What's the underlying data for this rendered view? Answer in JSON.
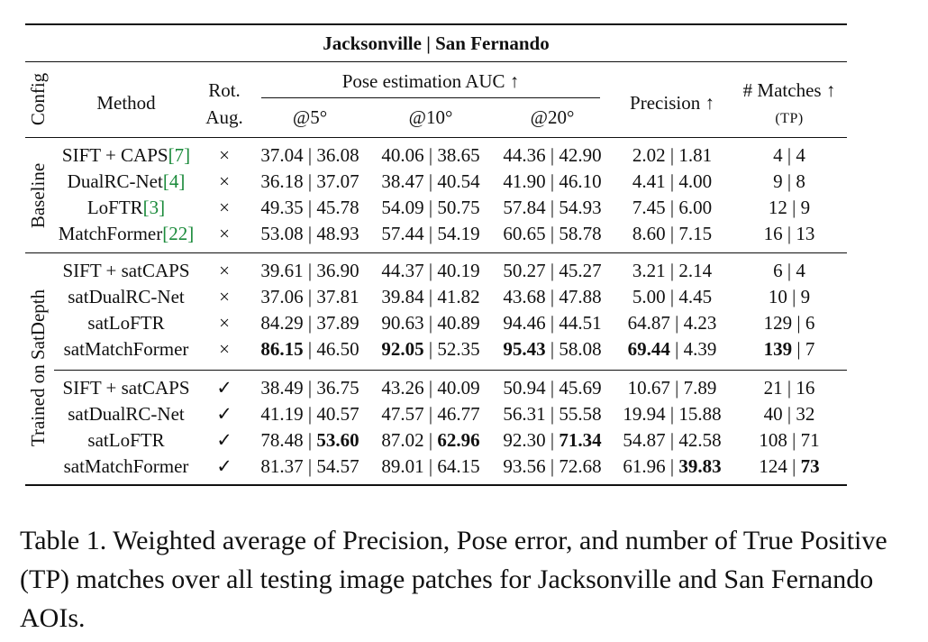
{
  "table": {
    "title": "Jacksonville | San Fernando",
    "headers": {
      "config": "Config",
      "method": "Method",
      "rot_aug_line1": "Rot.",
      "rot_aug_line2": "Aug.",
      "pose_group": "Pose estimation AUC ↑",
      "at5": "@5°",
      "at10": "@10°",
      "at20": "@20°",
      "precision": "Precision ↑",
      "matches_line1": "# Matches ↑",
      "matches_line2": "(TP)"
    },
    "groups": [
      {
        "label": "Baseline",
        "rows": [
          {
            "method": "SIFT + CAPS",
            "cite": "[7]",
            "rot": "×",
            "at5": [
              "37.04",
              "36.08"
            ],
            "at10": [
              "40.06",
              "38.65"
            ],
            "at20": [
              "44.36",
              "42.90"
            ],
            "precision": [
              "2.02",
              "1.81"
            ],
            "matches": [
              "4",
              "4"
            ]
          },
          {
            "method": "DualRC-Net",
            "cite": "[4]",
            "rot": "×",
            "at5": [
              "36.18",
              "37.07"
            ],
            "at10": [
              "38.47",
              "40.54"
            ],
            "at20": [
              "41.90",
              "46.10"
            ],
            "precision": [
              "4.41",
              "4.00"
            ],
            "matches": [
              "9",
              "8"
            ]
          },
          {
            "method": "LoFTR",
            "cite": "[3]",
            "rot": "×",
            "at5": [
              "49.35",
              "45.78"
            ],
            "at10": [
              "54.09",
              "50.75"
            ],
            "at20": [
              "57.84",
              "54.93"
            ],
            "precision": [
              "7.45",
              "6.00"
            ],
            "matches": [
              "12",
              "9"
            ]
          },
          {
            "method": "MatchFormer",
            "cite": "[22]",
            "rot": "×",
            "at5": [
              "53.08",
              "48.93"
            ],
            "at10": [
              "57.44",
              "54.19"
            ],
            "at20": [
              "60.65",
              "58.78"
            ],
            "precision": [
              "8.60",
              "7.15"
            ],
            "matches": [
              "16",
              "13"
            ]
          }
        ]
      },
      {
        "label": "Trained on SatDepth",
        "rows": [
          {
            "method": "SIFT + satCAPS",
            "cite": "",
            "rot": "×",
            "at5": [
              "39.61",
              "36.90"
            ],
            "at10": [
              "44.37",
              "40.19"
            ],
            "at20": [
              "50.27",
              "45.27"
            ],
            "precision": [
              "3.21",
              "2.14"
            ],
            "matches": [
              "6",
              "4"
            ]
          },
          {
            "method": "satDualRC-Net",
            "cite": "",
            "rot": "×",
            "at5": [
              "37.06",
              "37.81"
            ],
            "at10": [
              "39.84",
              "41.82"
            ],
            "at20": [
              "43.68",
              "47.88"
            ],
            "precision": [
              "5.00",
              "4.45"
            ],
            "matches": [
              "10",
              "9"
            ]
          },
          {
            "method": "satLoFTR",
            "cite": "",
            "rot": "×",
            "at5": [
              "84.29",
              "37.89"
            ],
            "at10": [
              "90.63",
              "40.89"
            ],
            "at20": [
              "94.46",
              "44.51"
            ],
            "precision": [
              "64.87",
              "4.23"
            ],
            "matches": [
              "129",
              "6"
            ]
          },
          {
            "method": "satMatchFormer",
            "cite": "",
            "rot": "×",
            "at5": [
              "86.15",
              "46.50"
            ],
            "at10": [
              "92.05",
              "52.35"
            ],
            "at20": [
              "95.43",
              "58.08"
            ],
            "precision": [
              "69.44",
              "4.39"
            ],
            "matches": [
              "139",
              "7"
            ]
          },
          {
            "method": "SIFT + satCAPS",
            "cite": "",
            "rot": "✓",
            "at5": [
              "38.49",
              "36.75"
            ],
            "at10": [
              "43.26",
              "40.09"
            ],
            "at20": [
              "50.94",
              "45.69"
            ],
            "precision": [
              "10.67",
              "7.89"
            ],
            "matches": [
              "21",
              "16"
            ]
          },
          {
            "method": "satDualRC-Net",
            "cite": "",
            "rot": "✓",
            "at5": [
              "41.19",
              "40.57"
            ],
            "at10": [
              "47.57",
              "46.77"
            ],
            "at20": [
              "56.31",
              "55.58"
            ],
            "precision": [
              "19.94",
              "15.88"
            ],
            "matches": [
              "40",
              "32"
            ]
          },
          {
            "method": "satLoFTR",
            "cite": "",
            "rot": "✓",
            "at5": [
              "78.48",
              "53.60"
            ],
            "at10": [
              "87.02",
              "62.96"
            ],
            "at20": [
              "92.30",
              "71.34"
            ],
            "precision": [
              "54.87",
              "42.58"
            ],
            "matches": [
              "108",
              "71"
            ]
          },
          {
            "method": "satMatchFormer",
            "cite": "",
            "rot": "✓",
            "at5": [
              "81.37",
              "54.57"
            ],
            "at10": [
              "89.01",
              "64.15"
            ],
            "at20": [
              "93.56",
              "72.68"
            ],
            "precision": [
              "61.96",
              "39.83"
            ],
            "matches": [
              "124",
              "73"
            ]
          }
        ]
      }
    ],
    "bold_cells": [
      [
        7,
        "at5",
        0
      ],
      [
        7,
        "at10",
        0
      ],
      [
        7,
        "at20",
        0
      ],
      [
        7,
        "precision",
        0
      ],
      [
        7,
        "matches",
        0
      ],
      [
        10,
        "at5",
        1
      ],
      [
        10,
        "at10",
        1
      ],
      [
        10,
        "at20",
        1
      ],
      [
        11,
        "precision",
        1
      ],
      [
        11,
        "matches",
        1
      ]
    ]
  },
  "caption": "Table 1. Weighted average of Precision, Pose error, and number of True Positive (TP) matches over all testing image patches for Jacksonville and San Fernando AOIs."
}
